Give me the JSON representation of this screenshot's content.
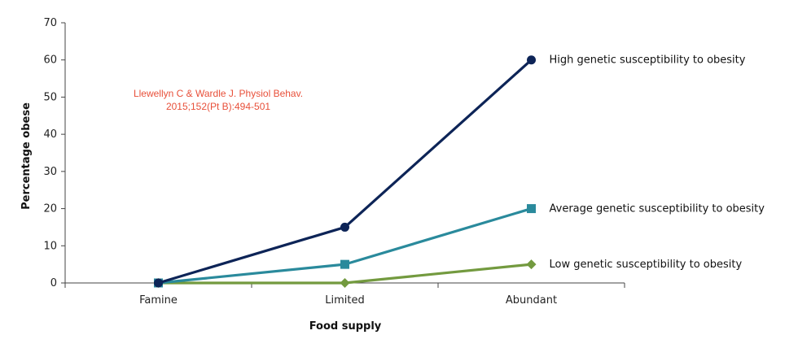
{
  "chart_data": {
    "type": "line",
    "categories": [
      "Famine",
      "Limited",
      "Abundant"
    ],
    "series": [
      {
        "name": "High genetic susceptibility to obesity",
        "values": [
          0,
          15,
          60
        ],
        "color": "#0d2457",
        "marker": "circle"
      },
      {
        "name": "Average genetic susceptibility to obesity",
        "values": [
          0,
          5,
          20
        ],
        "color": "#2a8a9c",
        "marker": "square"
      },
      {
        "name": "Low genetic susceptibility to obesity",
        "values": [
          0,
          0,
          5
        ],
        "color": "#739a3f",
        "marker": "diamond"
      }
    ],
    "xlabel": "Food supply",
    "ylabel": "Percentage obese",
    "ylim": [
      0,
      70
    ],
    "yticks": [
      0,
      10,
      20,
      30,
      40,
      50,
      60,
      70
    ],
    "grid": false,
    "legend": "labels at end of lines",
    "annotation": {
      "lines": [
        "Llewellyn C & Wardle J.  Physiol Behav.",
        "2015;152(Pt B):494-501"
      ],
      "color": "#e8503a"
    }
  }
}
